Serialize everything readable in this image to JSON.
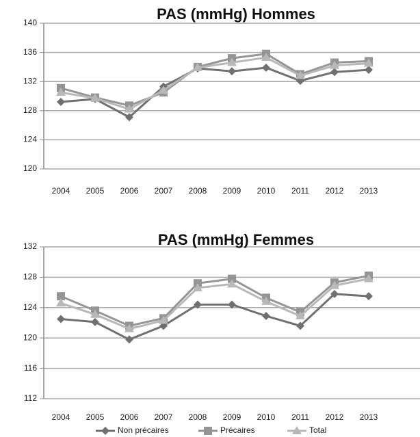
{
  "chart_data": [
    {
      "type": "line",
      "title": "PAS (mmHg) Hommes",
      "categories": [
        "2004",
        "2005",
        "2006",
        "2007",
        "2008",
        "2009",
        "2010",
        "2011",
        "2012",
        "2013"
      ],
      "ylim": [
        120,
        140
      ],
      "yticks": [
        120,
        124,
        128,
        132,
        136,
        140
      ],
      "grid": true,
      "series": [
        {
          "color": "#707070",
          "marker": "diamond",
          "values": [
            129.2,
            129.6,
            127.1,
            131.3,
            133.8,
            133.4,
            133.9,
            132.1,
            133.3,
            133.6
          ]
        },
        {
          "color": "#959595",
          "marker": "square",
          "values": [
            131.1,
            129.8,
            128.7,
            130.5,
            134.0,
            135.2,
            135.8,
            133.0,
            134.6,
            134.8
          ]
        },
        {
          "color": "#b8b8b8",
          "marker": "triangle",
          "values": [
            130.5,
            129.7,
            128.2,
            130.8,
            133.9,
            134.6,
            135.3,
            132.8,
            134.2,
            134.5
          ]
        }
      ]
    },
    {
      "type": "line",
      "title": "PAS (mmHg) Femmes",
      "categories": [
        "2004",
        "2005",
        "2006",
        "2007",
        "2008",
        "2009",
        "2010",
        "2011",
        "2012",
        "2013"
      ],
      "ylim": [
        112,
        132
      ],
      "yticks": [
        112,
        116,
        120,
        124,
        128,
        132
      ],
      "grid": true,
      "legend": "bottom",
      "series": [
        {
          "name": "Non précaires",
          "color": "#707070",
          "marker": "diamond",
          "values": [
            122.5,
            122.1,
            119.8,
            121.6,
            124.4,
            124.4,
            122.9,
            121.6,
            125.8,
            125.5
          ]
        },
        {
          "name": "Précaires",
          "color": "#959595",
          "marker": "square",
          "values": [
            125.5,
            123.6,
            121.6,
            122.6,
            127.2,
            127.8,
            125.3,
            123.4,
            127.3,
            128.2
          ]
        },
        {
          "name": "Total",
          "color": "#b8b8b8",
          "marker": "triangle",
          "values": [
            124.6,
            123.1,
            121.2,
            122.3,
            126.6,
            127.1,
            124.8,
            122.9,
            126.9,
            127.8
          ]
        }
      ]
    }
  ]
}
